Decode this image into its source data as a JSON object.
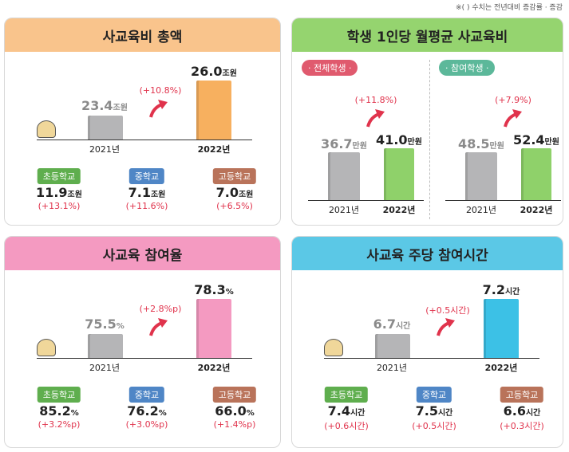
{
  "note": "※(     ) 수치는 전년대비 증감률 · 증감",
  "panels": [
    {
      "title": "사교육비 총액",
      "prev": {
        "value": "23.4",
        "unit": "조원",
        "year": "2021년"
      },
      "curr": {
        "value": "26.0",
        "unit": "조원",
        "year": "2022년"
      },
      "change": "(+10.8%)",
      "breakdown": [
        {
          "label": "초등학교",
          "value": "11.9",
          "unit": "조원",
          "change": "(+13.1%)"
        },
        {
          "label": "중학교",
          "value": "7.1",
          "unit": "조원",
          "change": "(+11.6%)"
        },
        {
          "label": "고등학교",
          "value": "7.0",
          "unit": "조원",
          "change": "(+6.5%)"
        }
      ]
    },
    {
      "title": "학생 1인당 월평균 사교육비",
      "groups": [
        {
          "label": "· 전체학생 ·",
          "prev": {
            "value": "36.7",
            "unit": "만원",
            "year": "2021년"
          },
          "curr": {
            "value": "41.0",
            "unit": "만원",
            "year": "2022년"
          },
          "change": "(+11.8%)"
        },
        {
          "label": "· 참여학생 ·",
          "prev": {
            "value": "48.5",
            "unit": "만원",
            "year": "2021년"
          },
          "curr": {
            "value": "52.4",
            "unit": "만원",
            "year": "2022년"
          },
          "change": "(+7.9%)"
        }
      ]
    },
    {
      "title": "사교육 참여율",
      "prev": {
        "value": "75.5",
        "unit": "%",
        "year": "2021년"
      },
      "curr": {
        "value": "78.3",
        "unit": "%",
        "year": "2022년"
      },
      "change": "(+2.8%p)",
      "breakdown": [
        {
          "label": "초등학교",
          "value": "85.2",
          "unit": "%",
          "change": "(+3.2%p)"
        },
        {
          "label": "중학교",
          "value": "76.2",
          "unit": "%",
          "change": "(+3.0%p)"
        },
        {
          "label": "고등학교",
          "value": "66.0",
          "unit": "%",
          "change": "(+1.4%p)"
        }
      ]
    },
    {
      "title": "사교육 주당 참여시간",
      "prev": {
        "value": "6.7",
        "unit": "시간",
        "year": "2021년"
      },
      "curr": {
        "value": "7.2",
        "unit": "시간",
        "year": "2022년"
      },
      "change": "(+0.5시간)",
      "breakdown": [
        {
          "label": "초등학교",
          "value": "7.4",
          "unit": "시간",
          "change": "(+0.6시간)"
        },
        {
          "label": "중학교",
          "value": "7.5",
          "unit": "시간",
          "change": "(+0.5시간)"
        },
        {
          "label": "고등학교",
          "value": "6.6",
          "unit": "시간",
          "change": "(+0.3시간)"
        }
      ]
    }
  ]
}
